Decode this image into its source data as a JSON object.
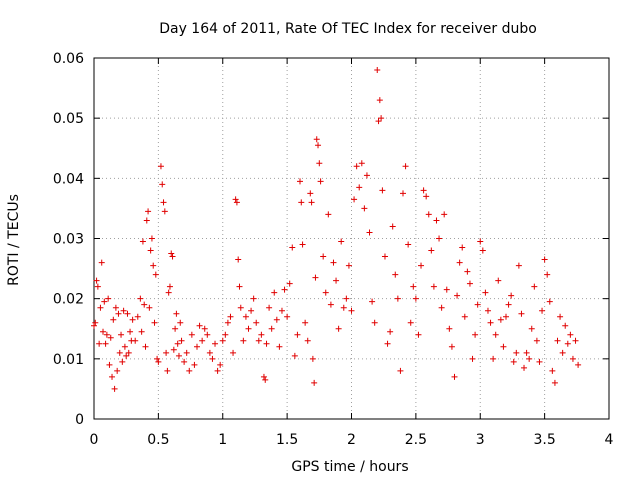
{
  "chart_data": {
    "type": "scatter",
    "title": "Day 164 of 2011, Rate Of TEC Index for receiver dubo",
    "xlabel": "GPS time / hours",
    "ylabel": "ROTI / TECUs",
    "xlim": [
      0,
      4
    ],
    "ylim": [
      0,
      0.06
    ],
    "x_ticks": [
      "0",
      "0.5",
      "1",
      "1.5",
      "2",
      "2.5",
      "3",
      "3.5",
      "4"
    ],
    "y_ticks": [
      "0",
      "0.01",
      "0.02",
      "0.03",
      "0.04",
      "0.05",
      "0.06"
    ],
    "grid": true,
    "marker": "plus",
    "color": "#e00000",
    "series": [
      {
        "points": [
          [
            0.0,
            0.0155
          ],
          [
            0.01,
            0.016
          ],
          [
            0.02,
            0.023
          ],
          [
            0.03,
            0.022
          ],
          [
            0.04,
            0.0125
          ],
          [
            0.05,
            0.0185
          ],
          [
            0.06,
            0.026
          ],
          [
            0.07,
            0.0145
          ],
          [
            0.08,
            0.0195
          ],
          [
            0.09,
            0.0125
          ],
          [
            0.1,
            0.014
          ],
          [
            0.11,
            0.02
          ],
          [
            0.12,
            0.009
          ],
          [
            0.13,
            0.0135
          ],
          [
            0.14,
            0.007
          ],
          [
            0.15,
            0.0165
          ],
          [
            0.16,
            0.005
          ],
          [
            0.17,
            0.0185
          ],
          [
            0.18,
            0.008
          ],
          [
            0.19,
            0.0175
          ],
          [
            0.2,
            0.011
          ],
          [
            0.21,
            0.014
          ],
          [
            0.22,
            0.0095
          ],
          [
            0.23,
            0.018
          ],
          [
            0.24,
            0.012
          ],
          [
            0.25,
            0.0105
          ],
          [
            0.26,
            0.0175
          ],
          [
            0.27,
            0.011
          ],
          [
            0.28,
            0.0145
          ],
          [
            0.29,
            0.013
          ],
          [
            0.3,
            0.0165
          ],
          [
            0.32,
            0.013
          ],
          [
            0.34,
            0.017
          ],
          [
            0.36,
            0.02
          ],
          [
            0.37,
            0.0145
          ],
          [
            0.38,
            0.0295
          ],
          [
            0.39,
            0.019
          ],
          [
            0.4,
            0.012
          ],
          [
            0.41,
            0.033
          ],
          [
            0.42,
            0.0345
          ],
          [
            0.43,
            0.0185
          ],
          [
            0.44,
            0.028
          ],
          [
            0.45,
            0.03
          ],
          [
            0.46,
            0.0255
          ],
          [
            0.47,
            0.016
          ],
          [
            0.48,
            0.024
          ],
          [
            0.49,
            0.01
          ],
          [
            0.5,
            0.0095
          ],
          [
            0.52,
            0.042
          ],
          [
            0.53,
            0.039
          ],
          [
            0.54,
            0.036
          ],
          [
            0.55,
            0.0345
          ],
          [
            0.56,
            0.011
          ],
          [
            0.57,
            0.008
          ],
          [
            0.58,
            0.021
          ],
          [
            0.59,
            0.022
          ],
          [
            0.6,
            0.0275
          ],
          [
            0.61,
            0.027
          ],
          [
            0.62,
            0.0115
          ],
          [
            0.63,
            0.015
          ],
          [
            0.64,
            0.0175
          ],
          [
            0.65,
            0.0125
          ],
          [
            0.66,
            0.0105
          ],
          [
            0.67,
            0.016
          ],
          [
            0.68,
            0.013
          ],
          [
            0.7,
            0.0095
          ],
          [
            0.72,
            0.011
          ],
          [
            0.74,
            0.008
          ],
          [
            0.76,
            0.014
          ],
          [
            0.78,
            0.009
          ],
          [
            0.8,
            0.012
          ],
          [
            0.82,
            0.0155
          ],
          [
            0.84,
            0.013
          ],
          [
            0.86,
            0.015
          ],
          [
            0.88,
            0.014
          ],
          [
            0.9,
            0.011
          ],
          [
            0.92,
            0.01
          ],
          [
            0.94,
            0.0125
          ],
          [
            0.96,
            0.008
          ],
          [
            0.98,
            0.009
          ],
          [
            1.0,
            0.013
          ],
          [
            1.02,
            0.014
          ],
          [
            1.04,
            0.016
          ],
          [
            1.06,
            0.017
          ],
          [
            1.08,
            0.011
          ],
          [
            1.1,
            0.0365
          ],
          [
            1.11,
            0.036
          ],
          [
            1.12,
            0.0265
          ],
          [
            1.13,
            0.022
          ],
          [
            1.14,
            0.0185
          ],
          [
            1.16,
            0.013
          ],
          [
            1.18,
            0.017
          ],
          [
            1.2,
            0.015
          ],
          [
            1.22,
            0.018
          ],
          [
            1.24,
            0.02
          ],
          [
            1.26,
            0.016
          ],
          [
            1.28,
            0.013
          ],
          [
            1.3,
            0.014
          ],
          [
            1.32,
            0.007
          ],
          [
            1.33,
            0.0065
          ],
          [
            1.34,
            0.0125
          ],
          [
            1.36,
            0.0185
          ],
          [
            1.38,
            0.015
          ],
          [
            1.4,
            0.021
          ],
          [
            1.42,
            0.0165
          ],
          [
            1.44,
            0.012
          ],
          [
            1.46,
            0.018
          ],
          [
            1.48,
            0.0215
          ],
          [
            1.5,
            0.017
          ],
          [
            1.52,
            0.0225
          ],
          [
            1.54,
            0.0285
          ],
          [
            1.56,
            0.0105
          ],
          [
            1.58,
            0.014
          ],
          [
            1.6,
            0.0395
          ],
          [
            1.61,
            0.036
          ],
          [
            1.62,
            0.029
          ],
          [
            1.64,
            0.016
          ],
          [
            1.66,
            0.013
          ],
          [
            1.68,
            0.0375
          ],
          [
            1.69,
            0.036
          ],
          [
            1.7,
            0.01
          ],
          [
            1.71,
            0.006
          ],
          [
            1.72,
            0.0235
          ],
          [
            1.73,
            0.0465
          ],
          [
            1.74,
            0.0455
          ],
          [
            1.75,
            0.0425
          ],
          [
            1.76,
            0.0395
          ],
          [
            1.78,
            0.027
          ],
          [
            1.8,
            0.021
          ],
          [
            1.82,
            0.034
          ],
          [
            1.84,
            0.019
          ],
          [
            1.86,
            0.026
          ],
          [
            1.88,
            0.023
          ],
          [
            1.9,
            0.015
          ],
          [
            1.92,
            0.0295
          ],
          [
            1.94,
            0.0185
          ],
          [
            1.96,
            0.02
          ],
          [
            1.98,
            0.0255
          ],
          [
            2.0,
            0.018
          ],
          [
            2.02,
            0.0365
          ],
          [
            2.04,
            0.042
          ],
          [
            2.06,
            0.0385
          ],
          [
            2.08,
            0.0425
          ],
          [
            2.1,
            0.035
          ],
          [
            2.12,
            0.0405
          ],
          [
            2.14,
            0.031
          ],
          [
            2.16,
            0.0195
          ],
          [
            2.18,
            0.016
          ],
          [
            2.2,
            0.058
          ],
          [
            2.21,
            0.0495
          ],
          [
            2.22,
            0.053
          ],
          [
            2.23,
            0.05
          ],
          [
            2.24,
            0.038
          ],
          [
            2.26,
            0.027
          ],
          [
            2.28,
            0.0125
          ],
          [
            2.3,
            0.0145
          ],
          [
            2.32,
            0.032
          ],
          [
            2.34,
            0.024
          ],
          [
            2.36,
            0.02
          ],
          [
            2.38,
            0.008
          ],
          [
            2.4,
            0.0375
          ],
          [
            2.42,
            0.042
          ],
          [
            2.44,
            0.029
          ],
          [
            2.46,
            0.016
          ],
          [
            2.48,
            0.022
          ],
          [
            2.5,
            0.02
          ],
          [
            2.52,
            0.014
          ],
          [
            2.54,
            0.0255
          ],
          [
            2.56,
            0.038
          ],
          [
            2.58,
            0.037
          ],
          [
            2.6,
            0.034
          ],
          [
            2.62,
            0.028
          ],
          [
            2.64,
            0.022
          ],
          [
            2.66,
            0.033
          ],
          [
            2.68,
            0.03
          ],
          [
            2.7,
            0.0185
          ],
          [
            2.72,
            0.034
          ],
          [
            2.74,
            0.0215
          ],
          [
            2.76,
            0.015
          ],
          [
            2.78,
            0.012
          ],
          [
            2.8,
            0.007
          ],
          [
            2.82,
            0.0205
          ],
          [
            2.84,
            0.026
          ],
          [
            2.86,
            0.0285
          ],
          [
            2.88,
            0.017
          ],
          [
            2.9,
            0.0245
          ],
          [
            2.92,
            0.0225
          ],
          [
            2.94,
            0.01
          ],
          [
            2.96,
            0.014
          ],
          [
            2.98,
            0.019
          ],
          [
            3.0,
            0.0295
          ],
          [
            3.02,
            0.028
          ],
          [
            3.04,
            0.021
          ],
          [
            3.06,
            0.018
          ],
          [
            3.08,
            0.016
          ],
          [
            3.1,
            0.01
          ],
          [
            3.12,
            0.014
          ],
          [
            3.14,
            0.023
          ],
          [
            3.16,
            0.0165
          ],
          [
            3.18,
            0.012
          ],
          [
            3.2,
            0.017
          ],
          [
            3.22,
            0.019
          ],
          [
            3.24,
            0.0205
          ],
          [
            3.26,
            0.0095
          ],
          [
            3.28,
            0.011
          ],
          [
            3.3,
            0.0255
          ],
          [
            3.32,
            0.0175
          ],
          [
            3.34,
            0.0085
          ],
          [
            3.36,
            0.011
          ],
          [
            3.38,
            0.01
          ],
          [
            3.4,
            0.015
          ],
          [
            3.42,
            0.022
          ],
          [
            3.44,
            0.013
          ],
          [
            3.46,
            0.0095
          ],
          [
            3.48,
            0.018
          ],
          [
            3.5,
            0.0265
          ],
          [
            3.52,
            0.024
          ],
          [
            3.54,
            0.0195
          ],
          [
            3.56,
            0.008
          ],
          [
            3.58,
            0.006
          ],
          [
            3.6,
            0.013
          ],
          [
            3.62,
            0.017
          ],
          [
            3.64,
            0.011
          ],
          [
            3.66,
            0.0155
          ],
          [
            3.68,
            0.0125
          ],
          [
            3.7,
            0.014
          ],
          [
            3.72,
            0.01
          ],
          [
            3.74,
            0.013
          ],
          [
            3.76,
            0.009
          ]
        ]
      }
    ]
  }
}
